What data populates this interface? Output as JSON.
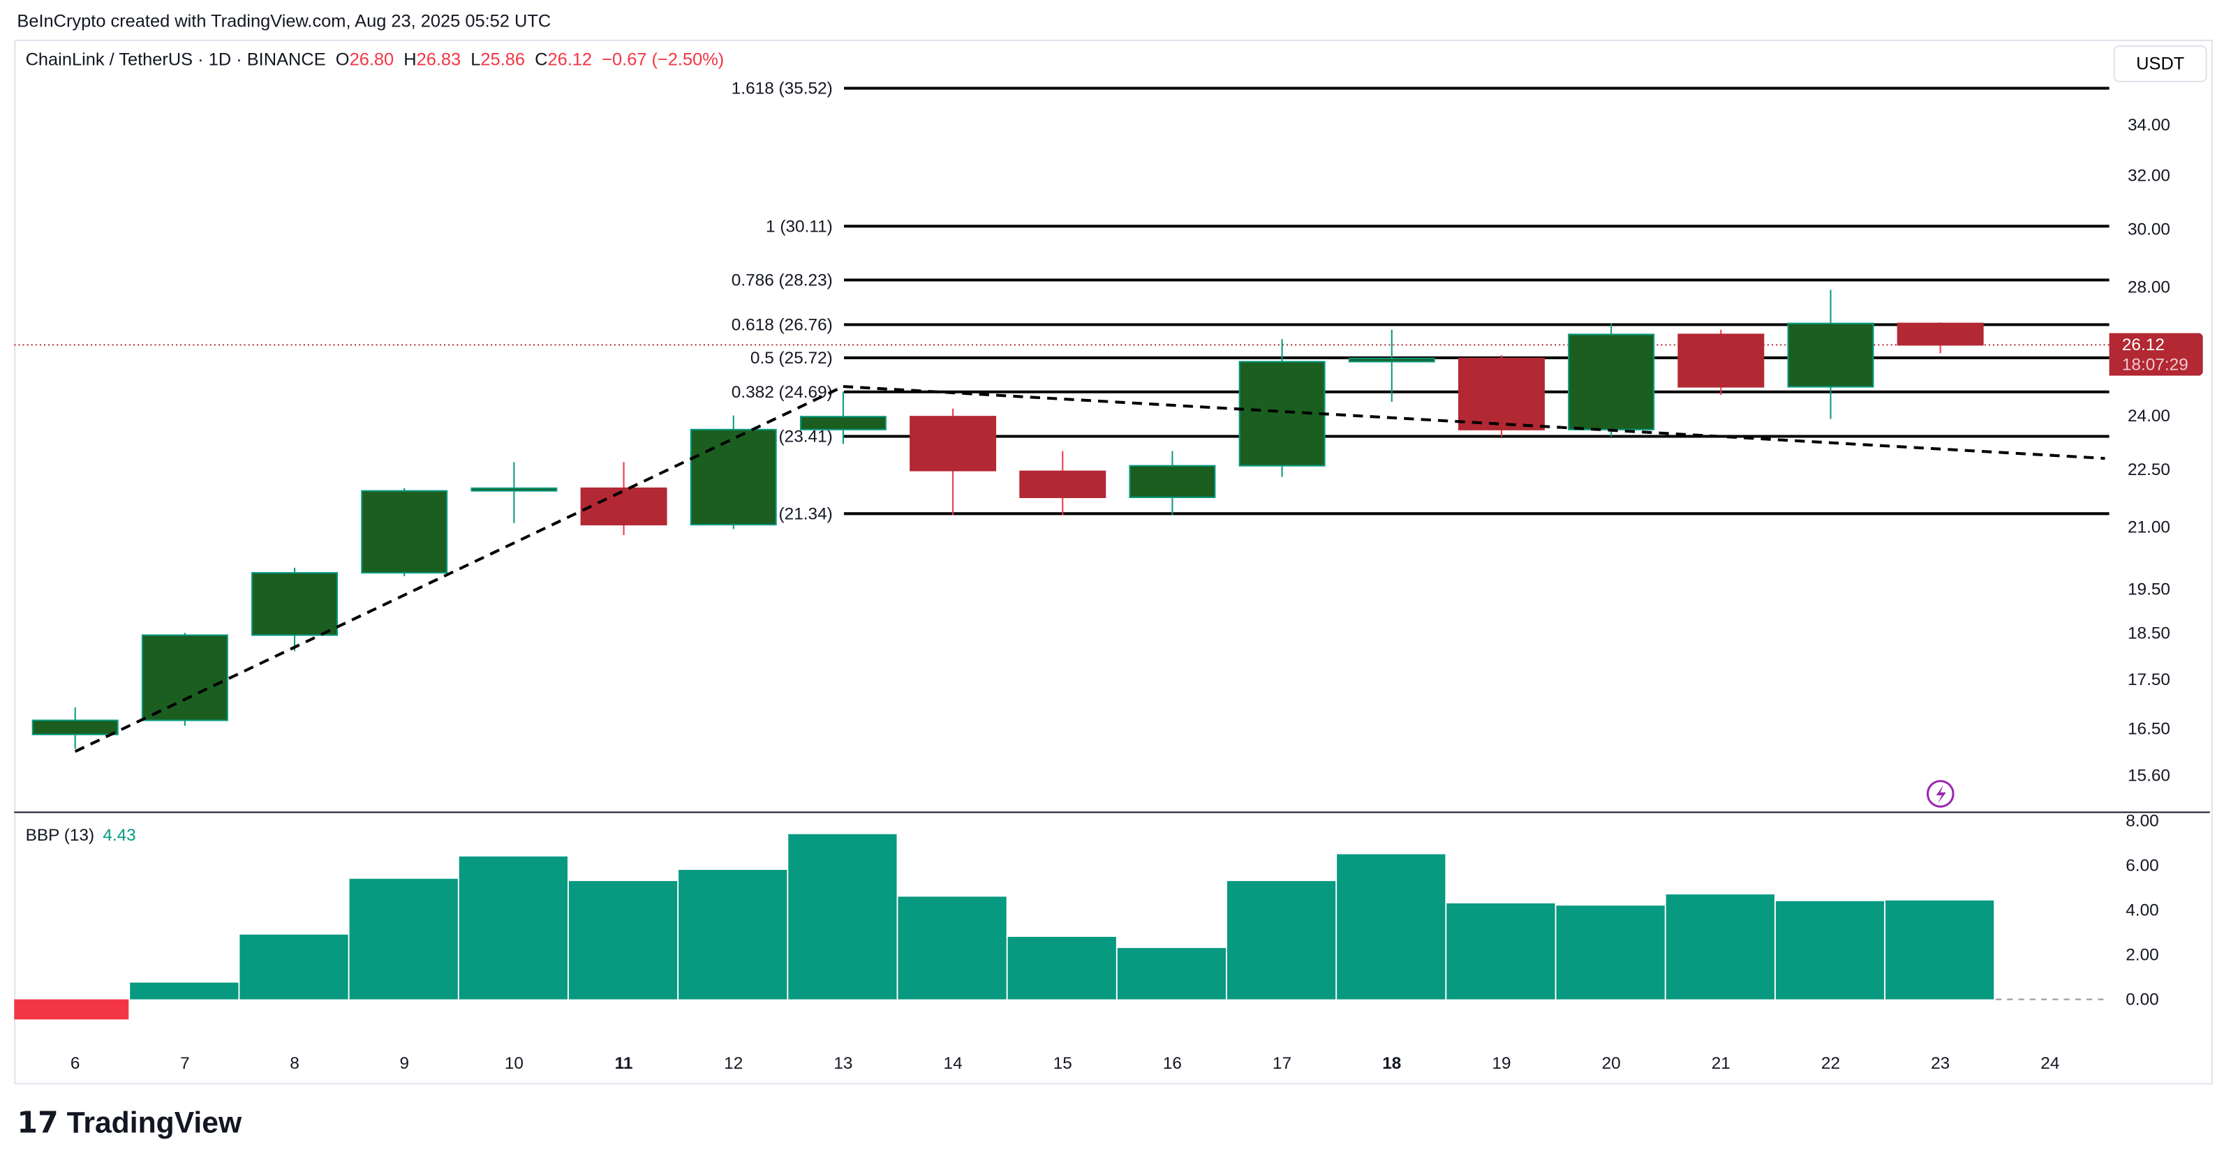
{
  "credit": "BeInCrypto created with TradingView.com, Aug 23, 2025 05:52 UTC",
  "symbol": "ChainLink / TetherUS · 1D · BINANCE",
  "ohlc": {
    "o_label": "O",
    "o": "26.80",
    "h_label": "H",
    "h": "26.83",
    "l_label": "L",
    "l": "25.86",
    "c_label": "C",
    "c": "26.12",
    "change": "−0.67 (−2.50%)"
  },
  "currency_button": "USDT",
  "last_price": "26.12",
  "countdown": "18:07:29",
  "indicator": {
    "name": "BBP (13)",
    "value": "4.43"
  },
  "logo": "TradingView",
  "colors": {
    "up": "#1b5e20",
    "down": "#b22833",
    "wick_up": "#089981",
    "wick_down": "#f23645",
    "bbp_pos": "#089981",
    "bbp_neg": "#f23645"
  },
  "chart_data": [
    {
      "type": "candlestick",
      "title": "ChainLink / TetherUS 1D",
      "scale": "log",
      "ylim": [
        15.3,
        36
      ],
      "y_ticks": [
        "34.00",
        "32.00",
        "30.00",
        "28.00",
        "24.00",
        "22.50",
        "21.00",
        "19.50",
        "18.50",
        "17.50",
        "16.50",
        "15.60"
      ],
      "x_labels": [
        "6",
        "7",
        "8",
        "9",
        "10",
        "11",
        "12",
        "13",
        "14",
        "15",
        "16",
        "17",
        "18",
        "19",
        "20",
        "21",
        "22",
        "23",
        "24"
      ],
      "x_bold": [
        "11",
        "18"
      ],
      "candles": [
        {
          "day": "6",
          "o": 16.38,
          "h": 16.92,
          "l": 16.1,
          "c": 16.66
        },
        {
          "day": "7",
          "o": 16.66,
          "h": 18.5,
          "l": 16.55,
          "c": 18.45
        },
        {
          "day": "8",
          "o": 18.45,
          "h": 20.0,
          "l": 18.1,
          "c": 19.88
        },
        {
          "day": "9",
          "o": 19.88,
          "h": 22.0,
          "l": 19.8,
          "c": 21.93
        },
        {
          "day": "10",
          "o": 21.93,
          "h": 22.7,
          "l": 21.1,
          "c": 22.0
        },
        {
          "day": "11",
          "o": 22.0,
          "h": 22.7,
          "l": 20.8,
          "c": 21.06
        },
        {
          "day": "12",
          "o": 21.06,
          "h": 24.0,
          "l": 20.95,
          "c": 23.6
        },
        {
          "day": "13",
          "o": 23.6,
          "h": 24.7,
          "l": 23.2,
          "c": 23.97
        },
        {
          "day": "14",
          "o": 23.97,
          "h": 24.2,
          "l": 21.3,
          "c": 22.47
        },
        {
          "day": "15",
          "o": 22.45,
          "h": 23.0,
          "l": 21.3,
          "c": 21.76
        },
        {
          "day": "16",
          "o": 21.76,
          "h": 23.0,
          "l": 21.3,
          "c": 22.6
        },
        {
          "day": "17",
          "o": 22.6,
          "h": 26.3,
          "l": 22.3,
          "c": 25.6
        },
        {
          "day": "18",
          "o": 25.6,
          "h": 26.6,
          "l": 24.4,
          "c": 25.7
        },
        {
          "day": "19",
          "o": 25.7,
          "h": 25.8,
          "l": 23.4,
          "c": 23.6
        },
        {
          "day": "20",
          "o": 23.6,
          "h": 26.8,
          "l": 23.4,
          "c": 26.45
        },
        {
          "day": "21",
          "o": 26.45,
          "h": 26.6,
          "l": 24.6,
          "c": 24.84
        },
        {
          "day": "22",
          "o": 24.84,
          "h": 27.9,
          "l": 23.9,
          "c": 26.8
        },
        {
          "day": "23",
          "o": 26.8,
          "h": 26.83,
          "l": 25.86,
          "c": 26.12
        }
      ],
      "fib_levels": [
        {
          "label": "1.618 (35.52)",
          "price": 35.52
        },
        {
          "label": "1 (30.11)",
          "price": 30.11
        },
        {
          "label": "0.786 (28.23)",
          "price": 28.23
        },
        {
          "label": "0.618 (26.76)",
          "price": 26.76
        },
        {
          "label": "0.5 (25.72)",
          "price": 25.72
        },
        {
          "label": "0.382 (24.69)",
          "price": 24.69
        },
        {
          "label": "0.236 (23.41)",
          "price": 23.41
        },
        {
          "label": "0 (21.34)",
          "price": 21.34
        }
      ],
      "trend_lines": [
        {
          "from": {
            "day": 6,
            "price": 16.05
          },
          "to": {
            "day": 13,
            "price": 24.85
          }
        },
        {
          "from": {
            "day": 13,
            "price": 24.85
          },
          "to": {
            "day": 24.5,
            "price": 22.8
          }
        }
      ]
    },
    {
      "type": "bar",
      "title": "BBP (13)",
      "ylim": [
        -1,
        8
      ],
      "y_ticks": [
        "8.00",
        "6.00",
        "4.00",
        "2.00",
        "0.00"
      ],
      "categories": [
        "6",
        "7",
        "8",
        "9",
        "10",
        "11",
        "12",
        "13",
        "14",
        "15",
        "16",
        "17",
        "18",
        "19",
        "20",
        "21",
        "22",
        "23"
      ],
      "values": [
        -0.9,
        0.75,
        2.9,
        5.4,
        6.4,
        5.3,
        5.8,
        7.4,
        4.6,
        2.8,
        2.3,
        5.3,
        6.5,
        4.3,
        4.2,
        4.7,
        4.4,
        4.43
      ]
    }
  ]
}
